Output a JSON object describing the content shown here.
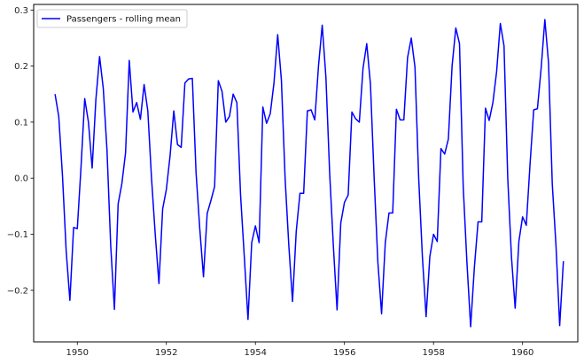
{
  "chart_data": {
    "type": "line",
    "title": "",
    "xlabel": "",
    "ylabel": "",
    "xlim": [
      1949.02,
      1961.24
    ],
    "ylim": [
      -0.292,
      0.31
    ],
    "grid": false,
    "legend": "top-left",
    "x_ticks": [
      {
        "value": 1950,
        "label": "1950"
      },
      {
        "value": 1952,
        "label": "1952"
      },
      {
        "value": 1954,
        "label": "1954"
      },
      {
        "value": 1956,
        "label": "1956"
      },
      {
        "value": 1958,
        "label": "1958"
      },
      {
        "value": 1960,
        "label": "1960"
      }
    ],
    "y_ticks": [
      {
        "value": -0.2,
        "label": "−0.2"
      },
      {
        "value": -0.1,
        "label": "−0.1"
      },
      {
        "value": 0.0,
        "label": "0.0"
      },
      {
        "value": 0.1,
        "label": "0.1"
      },
      {
        "value": 0.2,
        "label": "0.2"
      },
      {
        "value": 0.3,
        "label": "0.3"
      }
    ],
    "series": [
      {
        "name": "Passengers - rolling mean",
        "color": "#0000ff",
        "x_start": 1949.5,
        "x_step_months": 1,
        "values": [
          0.15,
          0.11,
          0.005,
          -0.13,
          -0.218,
          -0.088,
          -0.09,
          0.02,
          0.142,
          0.1,
          0.018,
          0.14,
          0.217,
          0.16,
          0.05,
          -0.12,
          -0.234,
          -0.046,
          -0.01,
          0.045,
          0.21,
          0.118,
          0.135,
          0.105,
          0.167,
          0.12,
          0.0,
          -0.1,
          -0.188,
          -0.055,
          -0.02,
          0.04,
          0.12,
          0.06,
          0.055,
          0.17,
          0.177,
          0.178,
          0.01,
          -0.09,
          -0.176,
          -0.063,
          -0.04,
          -0.015,
          0.174,
          0.155,
          0.1,
          0.11,
          0.15,
          0.135,
          -0.03,
          -0.14,
          -0.252,
          -0.115,
          -0.085,
          -0.115,
          0.127,
          0.098,
          0.115,
          0.17,
          0.256,
          0.175,
          0.0,
          -0.12,
          -0.22,
          -0.095,
          -0.027,
          -0.027,
          0.12,
          0.122,
          0.104,
          0.2,
          0.273,
          0.18,
          0.01,
          -0.12,
          -0.235,
          -0.08,
          -0.043,
          -0.03,
          0.118,
          0.106,
          0.1,
          0.196,
          0.24,
          0.168,
          0.0,
          -0.15,
          -0.242,
          -0.115,
          -0.062,
          -0.062,
          0.123,
          0.104,
          0.104,
          0.215,
          0.25,
          0.198,
          0.0,
          -0.14,
          -0.247,
          -0.14,
          -0.1,
          -0.113,
          0.053,
          0.043,
          0.07,
          0.2,
          0.268,
          0.24,
          -0.015,
          -0.15,
          -0.265,
          -0.16,
          -0.078,
          -0.078,
          0.125,
          0.103,
          0.135,
          0.19,
          0.276,
          0.236,
          0.0,
          -0.14,
          -0.232,
          -0.113,
          -0.069,
          -0.084,
          0.024,
          0.122,
          0.124,
          0.196,
          0.283,
          0.205,
          -0.01,
          -0.12,
          -0.263,
          -0.148
        ]
      }
    ]
  }
}
